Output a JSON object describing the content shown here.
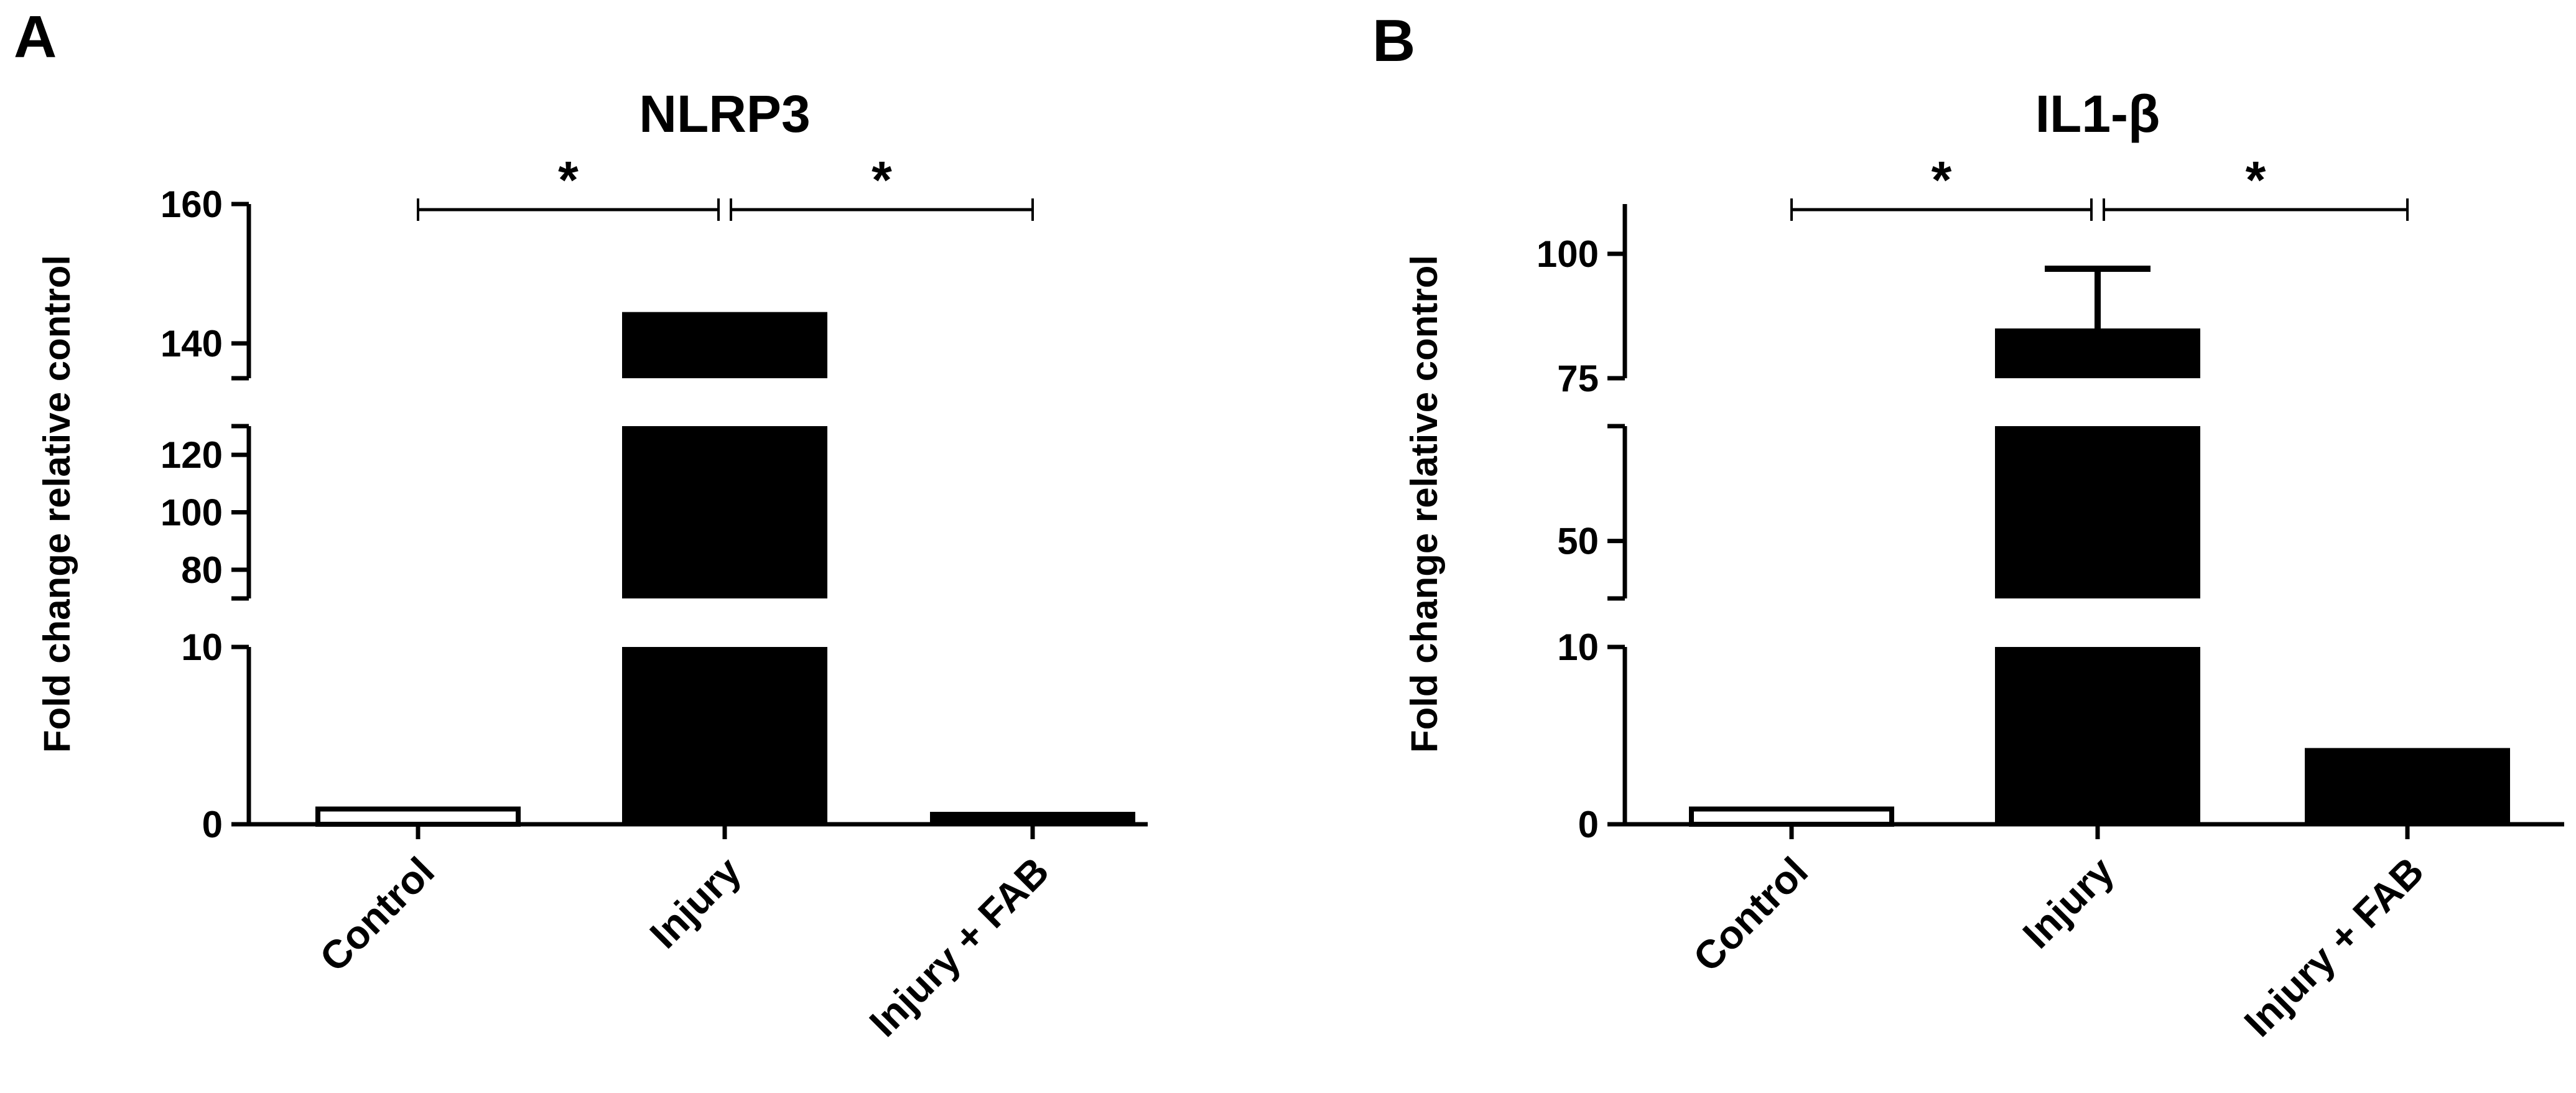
{
  "figure": {
    "panels": [
      {
        "letter": "A",
        "title": "NLRP3"
      },
      {
        "letter": "B",
        "title": "IL1-β"
      }
    ]
  },
  "chart_data": [
    {
      "type": "bar",
      "panel": "A",
      "title": "NLRP3",
      "xlabel": "",
      "ylabel": "Fold change relative control",
      "categories": [
        "Control",
        "Injury",
        "Injury + FAB"
      ],
      "values": [
        1,
        144.5,
        0.7
      ],
      "bar_fill": [
        "#ffffff",
        "#000000",
        "#000000"
      ],
      "error_bars": [
        null,
        null,
        null
      ],
      "y_axis_breaks": true,
      "y_segments": [
        {
          "range": [
            0,
            10
          ],
          "ticks": [
            0,
            10
          ]
        },
        {
          "range": [
            70,
            130
          ],
          "ticks": [
            80,
            100,
            120
          ]
        },
        {
          "range": [
            135,
            160
          ],
          "ticks": [
            140,
            160
          ]
        }
      ],
      "significance": [
        {
          "from": "Control",
          "to": "Injury",
          "label": "*"
        },
        {
          "from": "Injury",
          "to": "Injury + FAB",
          "label": "*"
        }
      ],
      "grid": false,
      "legend": "none"
    },
    {
      "type": "bar",
      "panel": "B",
      "title": "IL1-β",
      "xlabel": "",
      "ylabel": "Fold change relative control",
      "categories": [
        "Control",
        "Injury",
        "Injury + FAB"
      ],
      "values": [
        1,
        85,
        4.3
      ],
      "bar_fill": [
        "#ffffff",
        "#000000",
        "#000000"
      ],
      "error_bars": [
        null,
        12,
        null
      ],
      "y_axis_breaks": true,
      "y_segments": [
        {
          "range": [
            0,
            10
          ],
          "ticks": [
            0,
            10
          ]
        },
        {
          "range": [
            40,
            70
          ],
          "ticks": [
            50
          ]
        },
        {
          "range": [
            75,
            110
          ],
          "ticks": [
            75,
            100
          ]
        }
      ],
      "significance": [
        {
          "from": "Control",
          "to": "Injury",
          "label": "*"
        },
        {
          "from": "Injury",
          "to": "Injury + FAB",
          "label": "*"
        }
      ],
      "grid": false,
      "legend": "none"
    }
  ]
}
